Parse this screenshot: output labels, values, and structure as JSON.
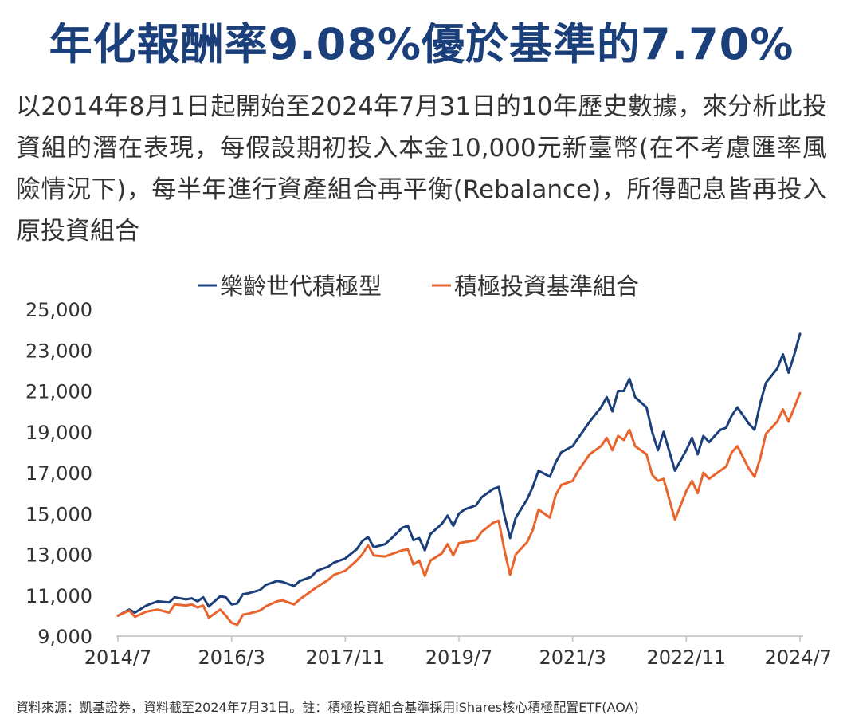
{
  "header": {
    "title": "年化報酬率9.08%優於基準的7.70%",
    "description": "以2014年8月1日起開始至2024年7月31日的10年歷史數據，來分析此投資組的潛在表現，每假設期初投入本金10,000元新臺幣(在不考慮匯率風險情況下)，每半年進行資產組合再平衡(Rebalance)，所得配息皆再投入原投資組合"
  },
  "footer": {
    "source": "資料來源：凱基證券，資料截至2024年7月31日。註：積極投資組合基準採用iShares核心積極配置ETF(AOA)"
  },
  "colors": {
    "title": "#1b3f7a",
    "series_navy": "#1b3f7a",
    "series_orange": "#e8642c",
    "axis_text": "#333333"
  },
  "chart_data": {
    "type": "line",
    "title": "",
    "xlabel": "",
    "ylabel": "",
    "legend_position": "top-center",
    "grid": false,
    "ylim": [
      9000,
      25000
    ],
    "yticks": [
      "25,000",
      "23,000",
      "21,000",
      "19,000",
      "17,000",
      "15,000",
      "13,000",
      "11,000",
      "9,000"
    ],
    "ytick_values": [
      25000,
      23000,
      21000,
      19000,
      17000,
      15000,
      13000,
      11000,
      9000
    ],
    "xticks": [
      "2014/7",
      "2016/3",
      "2017/11",
      "2019/7",
      "2021/3",
      "2022/11",
      "2024/7"
    ],
    "xtick_values": [
      "2014-07",
      "2016-03",
      "2017-11",
      "2019-07",
      "2021-03",
      "2022-11",
      "2024-07"
    ],
    "series": [
      {
        "name": "樂齡世代積極型",
        "color": "#1b3f7a",
        "points": [
          [
            "2014-07",
            10000
          ],
          [
            "2014-09",
            10300
          ],
          [
            "2014-10",
            10150
          ],
          [
            "2014-12",
            10500
          ],
          [
            "2015-02",
            10700
          ],
          [
            "2015-04",
            10650
          ],
          [
            "2015-05",
            10900
          ],
          [
            "2015-07",
            10800
          ],
          [
            "2015-08",
            10850
          ],
          [
            "2015-09",
            10700
          ],
          [
            "2015-10",
            10900
          ],
          [
            "2015-11",
            10450
          ],
          [
            "2016-01",
            10950
          ],
          [
            "2016-02",
            10900
          ],
          [
            "2016-03",
            10550
          ],
          [
            "2016-04",
            10600
          ],
          [
            "2016-05",
            11050
          ],
          [
            "2016-06",
            11100
          ],
          [
            "2016-08",
            11250
          ],
          [
            "2016-09",
            11500
          ],
          [
            "2016-11",
            11700
          ],
          [
            "2016-12",
            11650
          ],
          [
            "2017-02",
            11450
          ],
          [
            "2017-03",
            11700
          ],
          [
            "2017-05",
            11900
          ],
          [
            "2017-06",
            12200
          ],
          [
            "2017-08",
            12400
          ],
          [
            "2017-09",
            12600
          ],
          [
            "2017-11",
            12800
          ],
          [
            "2018-01",
            13250
          ],
          [
            "2018-02",
            13650
          ],
          [
            "2018-03",
            13850
          ],
          [
            "2018-04",
            13350
          ],
          [
            "2018-06",
            13500
          ],
          [
            "2018-07",
            13750
          ],
          [
            "2018-09",
            14300
          ],
          [
            "2018-10",
            14400
          ],
          [
            "2018-11",
            13700
          ],
          [
            "2018-12",
            13800
          ],
          [
            "2019-01",
            13200
          ],
          [
            "2019-02",
            14000
          ],
          [
            "2019-04",
            14500
          ],
          [
            "2019-05",
            14900
          ],
          [
            "2019-06",
            14400
          ],
          [
            "2019-07",
            15000
          ],
          [
            "2019-08",
            15200
          ],
          [
            "2019-10",
            15400
          ],
          [
            "2019-11",
            15800
          ],
          [
            "2020-01",
            16200
          ],
          [
            "2020-02",
            16300
          ],
          [
            "2020-03",
            14900
          ],
          [
            "2020-04",
            13800
          ],
          [
            "2020-05",
            14800
          ],
          [
            "2020-07",
            15700
          ],
          [
            "2020-08",
            16300
          ],
          [
            "2020-09",
            17100
          ],
          [
            "2020-11",
            16800
          ],
          [
            "2020-12",
            17500
          ],
          [
            "2021-01",
            18000
          ],
          [
            "2021-03",
            18300
          ],
          [
            "2021-04",
            18700
          ],
          [
            "2021-06",
            19500
          ],
          [
            "2021-08",
            20200
          ],
          [
            "2021-09",
            20700
          ],
          [
            "2021-10",
            20000
          ],
          [
            "2021-11",
            21000
          ],
          [
            "2021-12",
            21000
          ],
          [
            "2022-01",
            21600
          ],
          [
            "2022-02",
            20700
          ],
          [
            "2022-04",
            20200
          ],
          [
            "2022-05",
            19000
          ],
          [
            "2022-06",
            18100
          ],
          [
            "2022-07",
            19000
          ],
          [
            "2022-09",
            17100
          ],
          [
            "2022-11",
            18100
          ],
          [
            "2022-12",
            18700
          ],
          [
            "2023-01",
            17900
          ],
          [
            "2023-02",
            18800
          ],
          [
            "2023-03",
            18500
          ],
          [
            "2023-05",
            19100
          ],
          [
            "2023-06",
            19200
          ],
          [
            "2023-07",
            19800
          ],
          [
            "2023-08",
            20200
          ],
          [
            "2023-10",
            19400
          ],
          [
            "2023-11",
            19100
          ],
          [
            "2023-12",
            20400
          ],
          [
            "2024-01",
            21400
          ],
          [
            "2024-03",
            22100
          ],
          [
            "2024-04",
            22800
          ],
          [
            "2024-05",
            21900
          ],
          [
            "2024-06",
            22800
          ],
          [
            "2024-07",
            23800
          ]
        ]
      },
      {
        "name": "積極投資基準組合",
        "color": "#e8642c",
        "points": [
          [
            "2014-07",
            10000
          ],
          [
            "2014-09",
            10250
          ],
          [
            "2014-10",
            9950
          ],
          [
            "2014-12",
            10200
          ],
          [
            "2015-02",
            10300
          ],
          [
            "2015-04",
            10150
          ],
          [
            "2015-05",
            10550
          ],
          [
            "2015-07",
            10500
          ],
          [
            "2015-08",
            10550
          ],
          [
            "2015-09",
            10400
          ],
          [
            "2015-10",
            10500
          ],
          [
            "2015-11",
            9900
          ],
          [
            "2016-01",
            10300
          ],
          [
            "2016-02",
            10000
          ],
          [
            "2016-03",
            9650
          ],
          [
            "2016-04",
            9550
          ],
          [
            "2016-05",
            10050
          ],
          [
            "2016-06",
            10100
          ],
          [
            "2016-08",
            10250
          ],
          [
            "2016-09",
            10450
          ],
          [
            "2016-11",
            10700
          ],
          [
            "2016-12",
            10750
          ],
          [
            "2017-02",
            10550
          ],
          [
            "2017-03",
            10800
          ],
          [
            "2017-05",
            11200
          ],
          [
            "2017-06",
            11400
          ],
          [
            "2017-08",
            11750
          ],
          [
            "2017-09",
            12000
          ],
          [
            "2017-11",
            12200
          ],
          [
            "2018-01",
            12700
          ],
          [
            "2018-02",
            13000
          ],
          [
            "2018-03",
            13450
          ],
          [
            "2018-04",
            12950
          ],
          [
            "2018-06",
            12900
          ],
          [
            "2018-07",
            13000
          ],
          [
            "2018-09",
            13200
          ],
          [
            "2018-10",
            13250
          ],
          [
            "2018-11",
            12500
          ],
          [
            "2018-12",
            12700
          ],
          [
            "2019-01",
            11950
          ],
          [
            "2019-02",
            12700
          ],
          [
            "2019-04",
            13050
          ],
          [
            "2019-05",
            13500
          ],
          [
            "2019-06",
            12950
          ],
          [
            "2019-07",
            13550
          ],
          [
            "2019-08",
            13600
          ],
          [
            "2019-10",
            13700
          ],
          [
            "2019-11",
            14100
          ],
          [
            "2020-01",
            14550
          ],
          [
            "2020-02",
            14650
          ],
          [
            "2020-03",
            13200
          ],
          [
            "2020-04",
            12000
          ],
          [
            "2020-05",
            13000
          ],
          [
            "2020-07",
            13600
          ],
          [
            "2020-08",
            14200
          ],
          [
            "2020-09",
            15200
          ],
          [
            "2020-11",
            14800
          ],
          [
            "2020-12",
            15900
          ],
          [
            "2021-01",
            16400
          ],
          [
            "2021-03",
            16600
          ],
          [
            "2021-04",
            17100
          ],
          [
            "2021-06",
            17900
          ],
          [
            "2021-08",
            18300
          ],
          [
            "2021-09",
            18700
          ],
          [
            "2021-10",
            18100
          ],
          [
            "2021-11",
            18800
          ],
          [
            "2021-12",
            18600
          ],
          [
            "2022-01",
            19100
          ],
          [
            "2022-02",
            18300
          ],
          [
            "2022-04",
            17900
          ],
          [
            "2022-05",
            16900
          ],
          [
            "2022-06",
            16600
          ],
          [
            "2022-07",
            16700
          ],
          [
            "2022-09",
            14700
          ],
          [
            "2022-11",
            16100
          ],
          [
            "2022-12",
            16600
          ],
          [
            "2023-01",
            16000
          ],
          [
            "2023-02",
            17000
          ],
          [
            "2023-03",
            16700
          ],
          [
            "2023-05",
            17100
          ],
          [
            "2023-06",
            17300
          ],
          [
            "2023-07",
            18000
          ],
          [
            "2023-08",
            18300
          ],
          [
            "2023-10",
            17200
          ],
          [
            "2023-11",
            16800
          ],
          [
            "2023-12",
            17700
          ],
          [
            "2024-01",
            18900
          ],
          [
            "2024-03",
            19500
          ],
          [
            "2024-04",
            20100
          ],
          [
            "2024-05",
            19500
          ],
          [
            "2024-06",
            20200
          ],
          [
            "2024-07",
            20900
          ]
        ]
      }
    ]
  }
}
